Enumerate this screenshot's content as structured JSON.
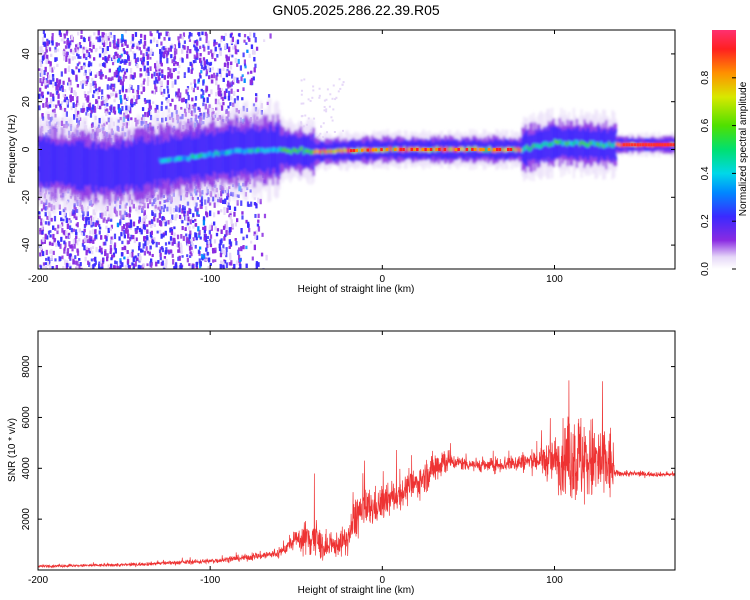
{
  "title": "GN05.2025.286.22.39.R05",
  "colors": {
    "snr_line": "#ee3333",
    "background": "#ffffff",
    "axis": "#000000"
  },
  "chart_data": [
    {
      "type": "heatmap",
      "xlabel": "Height of straight line (km)",
      "ylabel": "Frequency (Hz)",
      "xlim": [
        -200,
        170
      ],
      "ylim": [
        -50,
        50
      ],
      "x_ticks": [
        -200,
        -100,
        0,
        100
      ],
      "y_ticks": [
        -40,
        -20,
        0,
        20,
        40
      ],
      "colorbar": {
        "label": "Normalized spectral amplitude",
        "range": [
          0.0,
          1.0
        ],
        "ticks": [
          0.0,
          0.2,
          0.4,
          0.6,
          0.8
        ],
        "tick_labels": [
          "0.0",
          "0.2",
          "0.4",
          "0.6",
          "0.8"
        ]
      },
      "ridge_center_hz": [
        {
          "x": -200,
          "y": -5
        },
        {
          "x": -160,
          "y": -8
        },
        {
          "x": -120,
          "y": -4
        },
        {
          "x": -90,
          "y": -1
        },
        {
          "x": -60,
          "y": 0
        },
        {
          "x": -40,
          "y": -1
        },
        {
          "x": 0,
          "y": 0
        },
        {
          "x": 50,
          "y": 0
        },
        {
          "x": 80,
          "y": 0
        },
        {
          "x": 100,
          "y": 3
        },
        {
          "x": 130,
          "y": 2
        },
        {
          "x": 170,
          "y": 2
        }
      ],
      "grid": false
    },
    {
      "type": "line",
      "xlabel": "Height of straight line (km)",
      "ylabel": "SNR (10 * v/v)",
      "xlim": [
        -200,
        170
      ],
      "ylim": [
        0,
        9400
      ],
      "x_ticks": [
        -200,
        -100,
        0,
        100
      ],
      "y_ticks": [
        2000,
        4000,
        6000,
        8000
      ],
      "series": [
        {
          "envelope": [
            {
              "x": -200,
              "mean": 150,
              "amp": 80
            },
            {
              "x": -150,
              "mean": 200,
              "amp": 100
            },
            {
              "x": -100,
              "mean": 350,
              "amp": 150
            },
            {
              "x": -80,
              "mean": 480,
              "amp": 200
            },
            {
              "x": -60,
              "mean": 650,
              "amp": 300
            },
            {
              "x": -50,
              "mean": 1200,
              "amp": 500
            },
            {
              "x": -40,
              "mean": 1300,
              "amp": 1600
            },
            {
              "x": -33,
              "mean": 800,
              "amp": 600
            },
            {
              "x": -20,
              "mean": 1200,
              "amp": 900
            },
            {
              "x": -15,
              "mean": 2200,
              "amp": 1500
            },
            {
              "x": 0,
              "mean": 2600,
              "amp": 1000
            },
            {
              "x": 20,
              "mean": 3400,
              "amp": 900
            },
            {
              "x": 35,
              "mean": 4300,
              "amp": 1100
            },
            {
              "x": 40,
              "mean": 4250,
              "amp": 450
            },
            {
              "x": 60,
              "mean": 4100,
              "amp": 400
            },
            {
              "x": 90,
              "mean": 4300,
              "amp": 700
            },
            {
              "x": 100,
              "mean": 4300,
              "amp": 1500
            },
            {
              "x": 112,
              "mean": 4400,
              "amp": 3000
            },
            {
              "x": 120,
              "mean": 4300,
              "amp": 2700
            },
            {
              "x": 133,
              "mean": 4100,
              "amp": 2400
            },
            {
              "x": 135,
              "mean": 3800,
              "amp": 200
            },
            {
              "x": 170,
              "mean": 3750,
              "amp": 120
            }
          ]
        }
      ],
      "grid": false
    }
  ]
}
